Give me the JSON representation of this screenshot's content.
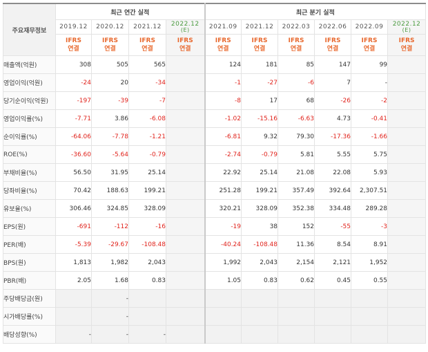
{
  "header": {
    "corner_label": "주요재무정보",
    "annual_group": "최근 연간 실적",
    "quarter_group": "최근 분기 실적",
    "ifrs_label": "IFRS",
    "consolidated_label": "연결",
    "estimate_mark": "(E)",
    "annual_periods": [
      "2019.12",
      "2020.12",
      "2021.12",
      "2022.12"
    ],
    "quarter_periods": [
      "2021.09",
      "2021.12",
      "2022.03",
      "2022.06",
      "2022.09",
      "2022.12"
    ]
  },
  "rows": [
    {
      "label": "매출액(억원)",
      "values": [
        "308",
        "505",
        "565",
        "",
        "124",
        "181",
        "85",
        "147",
        "99",
        ""
      ]
    },
    {
      "label": "영업이익(억원)",
      "values": [
        "-24",
        "20",
        "-34",
        "",
        "-1",
        "-27",
        "-6",
        "7",
        "-",
        ""
      ]
    },
    {
      "label": "당기순이익(억원)",
      "values": [
        "-197",
        "-39",
        "-7",
        "",
        "-8",
        "17",
        "68",
        "-26",
        "-2",
        ""
      ]
    },
    {
      "label": "영업이익률(%)",
      "values": [
        "-7.71",
        "3.86",
        "-6.08",
        "",
        "-1.02",
        "-15.16",
        "-6.63",
        "4.73",
        "-0.41",
        ""
      ]
    },
    {
      "label": "순이익률(%)",
      "values": [
        "-64.06",
        "-7.78",
        "-1.21",
        "",
        "-6.81",
        "9.32",
        "79.30",
        "-17.36",
        "-1.66",
        ""
      ]
    },
    {
      "label": "ROE(%)",
      "values": [
        "-36.60",
        "-5.64",
        "-0.79",
        "",
        "-2.74",
        "-0.79",
        "5.81",
        "5.55",
        "5.75",
        ""
      ]
    },
    {
      "label": "부채비율(%)",
      "values": [
        "56.50",
        "31.95",
        "25.14",
        "",
        "22.92",
        "25.14",
        "21.08",
        "22.08",
        "5.93",
        ""
      ]
    },
    {
      "label": "당좌비율(%)",
      "values": [
        "70.42",
        "188.63",
        "199.21",
        "",
        "251.28",
        "199.21",
        "357.49",
        "392.64",
        "2,307.51",
        ""
      ]
    },
    {
      "label": "유보율(%)",
      "values": [
        "306.46",
        "324.85",
        "328.09",
        "",
        "320.21",
        "328.09",
        "352.38",
        "334.48",
        "289.28",
        ""
      ]
    },
    {
      "label": "EPS(원)",
      "values": [
        "-691",
        "-112",
        "-16",
        "",
        "-19",
        "38",
        "152",
        "-55",
        "-3",
        ""
      ]
    },
    {
      "label": "PER(배)",
      "values": [
        "-5.39",
        "-29.67",
        "-108.48",
        "",
        "-40.24",
        "-108.48",
        "11.36",
        "8.54",
        "8.91",
        ""
      ]
    },
    {
      "label": "BPS(원)",
      "values": [
        "1,813",
        "1,982",
        "2,043",
        "",
        "1,992",
        "2,043",
        "2,154",
        "2,121",
        "1,952",
        ""
      ]
    },
    {
      "label": "PBR(배)",
      "values": [
        "2.05",
        "1.68",
        "0.83",
        "",
        "1.05",
        "0.83",
        "0.62",
        "0.45",
        "0.55",
        ""
      ]
    },
    {
      "label": "주당배당금(원)",
      "values": [
        "",
        "-",
        "",
        "",
        "",
        "",
        "",
        "",
        "",
        ""
      ]
    },
    {
      "label": "시가배당률(%)",
      "values": [
        "",
        "-",
        "",
        "",
        "",
        "",
        "",
        "",
        "",
        ""
      ]
    },
    {
      "label": "배당성향(%)",
      "values": [
        "-",
        "-",
        "-",
        "",
        "",
        "",
        "",
        "",
        "",
        ""
      ]
    }
  ],
  "colors": {
    "negative": "#e0221b",
    "ifrs": "#e8682d",
    "estimate": "#4a9a3f"
  }
}
